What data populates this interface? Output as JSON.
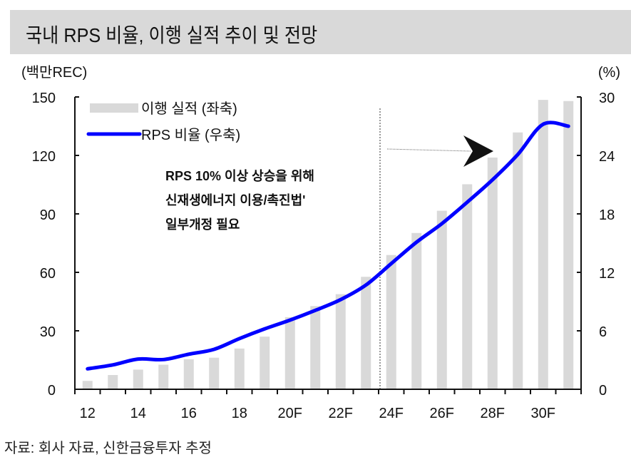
{
  "title": "국내 RPS 비율, 이행 실적 추이 및 전망",
  "source": "자료: 회사 자료, 신한금융투자 추정",
  "colors": {
    "bar": "#d9d9d9",
    "line": "#0000ff",
    "title_bg": "#d9d9d9"
  },
  "annotation": {
    "lines": [
      "RPS 10% 이상 상승을 위해",
      "신재생에너지 이용/촉진법'",
      "일부개정 필요"
    ]
  },
  "chart_data": {
    "type": "bar+line",
    "title": "국내 RPS 비율, 이행 실적 추이 및 전망",
    "y_left_label": "(백만REC)",
    "y_right_label": "(%)",
    "y_left_lim": [
      0,
      150
    ],
    "y_right_lim": [
      0,
      30
    ],
    "y_left_ticks": [
      "0",
      "30",
      "60",
      "90",
      "120",
      "150"
    ],
    "y_right_ticks": [
      "0",
      "6",
      "12",
      "18",
      "24",
      "30"
    ],
    "x_tick_labels": [
      "12",
      "14",
      "16",
      "18",
      "20F",
      "22F",
      "24F",
      "26F",
      "28F",
      "30F"
    ],
    "categories": [
      "12",
      "13",
      "14",
      "15",
      "16",
      "17",
      "18",
      "19",
      "20F",
      "21F",
      "22F",
      "23F",
      "24F",
      "25F",
      "26F",
      "27F",
      "28F",
      "29F",
      "30F",
      "31F"
    ],
    "forecast_divider_after": "23F",
    "legend": [
      "이행 실적 (좌축)",
      "RPS 비율 (우축)"
    ],
    "legend_position": "top-left",
    "series": [
      {
        "name": "이행 실적 (좌축)",
        "type": "bar",
        "axis": "left",
        "values": [
          4.3,
          7.3,
          10.1,
          12.6,
          15.4,
          16.2,
          20.9,
          27.0,
          37.0,
          42.7,
          48.8,
          57.7,
          68.9,
          80.2,
          91.6,
          105.2,
          118.9,
          131.8,
          148.5,
          147.9
        ]
      },
      {
        "name": "RPS 비율 (우축)",
        "type": "line",
        "axis": "right",
        "values": [
          2.1,
          2.5,
          3.1,
          3.05,
          3.6,
          4.1,
          5.2,
          6.2,
          7.1,
          8.1,
          9.2,
          10.7,
          12.9,
          15.1,
          17.0,
          19.2,
          21.5,
          24.1,
          27.2,
          27.0
        ]
      }
    ]
  }
}
